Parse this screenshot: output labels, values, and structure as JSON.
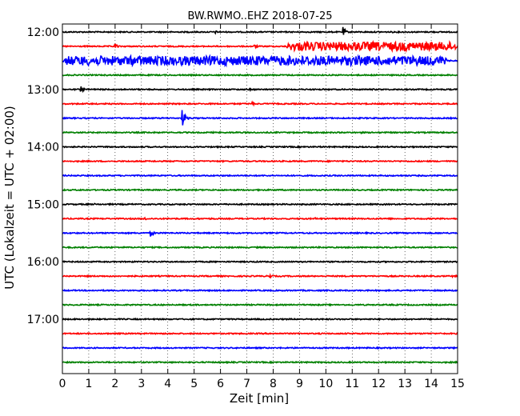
{
  "chart_data": {
    "type": "line",
    "title": "BW.RWMO..EHZ 2018-07-25",
    "xlabel": "Zeit  [min]",
    "ylabel": "UTC (Lokalzeit = UTC + 02:00)",
    "xlim": [
      0,
      15
    ],
    "xticks": [
      "0",
      "1",
      "2",
      "3",
      "4",
      "5",
      "6",
      "7",
      "8",
      "9",
      "10",
      "11",
      "12",
      "13",
      "14",
      "15"
    ],
    "ytick_labels": [
      "12:00",
      "13:00",
      "14:00",
      "15:00",
      "16:00",
      "17:00"
    ],
    "trace_interval_min": 15,
    "colors": [
      "#000000",
      "#ff0000",
      "#0000ff",
      "#008000"
    ],
    "grid": "vertical dotted",
    "series": [
      {
        "start": "12:00",
        "color": "#000000",
        "events": [
          {
            "t": 0.5,
            "amp": 0.15
          },
          {
            "t": 5.8,
            "amp": 0.25
          },
          {
            "t": 10.65,
            "amp": 0.7
          },
          {
            "t": 12.5,
            "amp": 0.15
          }
        ]
      },
      {
        "start": "12:15",
        "color": "#ff0000",
        "events": [
          {
            "t": 2.0,
            "amp": 0.45
          },
          {
            "t": 7.3,
            "amp": 0.3
          },
          {
            "t": 8.55,
            "amp": 0.45
          },
          {
            "t": 10.9,
            "amp": 0.45
          }
        ],
        "bursts": [
          {
            "from": 8.5,
            "to": 15.0,
            "amp": 0.6
          }
        ]
      },
      {
        "start": "12:30",
        "color": "#0000ff",
        "events": [],
        "bursts": [
          {
            "from": 0.0,
            "to": 14.6,
            "amp": 0.65
          }
        ]
      },
      {
        "start": "12:45",
        "color": "#008000",
        "events": [
          {
            "t": 4.0,
            "amp": 0.12
          },
          {
            "t": 9.3,
            "amp": 0.12
          }
        ]
      },
      {
        "start": "13:00",
        "color": "#000000",
        "events": [
          {
            "t": 0.7,
            "amp": 0.45
          },
          {
            "t": 7.1,
            "amp": 0.2
          }
        ]
      },
      {
        "start": "13:15",
        "color": "#ff0000",
        "events": [
          {
            "t": 7.2,
            "amp": 0.28
          }
        ]
      },
      {
        "start": "13:30",
        "color": "#0000ff",
        "events": [
          {
            "t": 4.55,
            "amp": 1.4
          }
        ]
      },
      {
        "start": "13:45",
        "color": "#008000",
        "events": [
          {
            "t": 11.3,
            "amp": 0.15
          }
        ]
      },
      {
        "start": "14:00",
        "color": "#000000",
        "events": [
          {
            "t": 1.5,
            "amp": 0.1
          }
        ]
      },
      {
        "start": "14:15",
        "color": "#ff0000",
        "events": [
          {
            "t": 6.0,
            "amp": 0.12
          },
          {
            "t": 13.5,
            "amp": 0.12
          }
        ]
      },
      {
        "start": "14:30",
        "color": "#0000ff",
        "events": [
          {
            "t": 9.0,
            "amp": 0.12
          }
        ]
      },
      {
        "start": "14:45",
        "color": "#008000",
        "events": [
          {
            "t": 4.5,
            "amp": 0.1
          }
        ]
      },
      {
        "start": "15:00",
        "color": "#000000",
        "events": [
          {
            "t": 1.2,
            "amp": 0.15
          }
        ]
      },
      {
        "start": "15:15",
        "color": "#ff0000",
        "events": [
          {
            "t": 3.15,
            "amp": 0.3
          },
          {
            "t": 5.6,
            "amp": 0.15
          },
          {
            "t": 9.6,
            "amp": 0.18
          },
          {
            "t": 12.5,
            "amp": 0.12
          }
        ]
      },
      {
        "start": "15:30",
        "color": "#0000ff",
        "events": [
          {
            "t": 3.35,
            "amp": 0.6
          },
          {
            "t": 6.3,
            "amp": 0.12
          }
        ]
      },
      {
        "start": "15:45",
        "color": "#008000",
        "events": [
          {
            "t": 1.2,
            "amp": 0.15
          },
          {
            "t": 12.4,
            "amp": 0.25
          }
        ]
      },
      {
        "start": "16:00",
        "color": "#000000",
        "events": []
      },
      {
        "start": "16:15",
        "color": "#ff0000",
        "events": [
          {
            "t": 7.85,
            "amp": 0.4
          },
          {
            "t": 14.8,
            "amp": 0.15
          }
        ]
      },
      {
        "start": "16:30",
        "color": "#0000ff",
        "events": []
      },
      {
        "start": "16:45",
        "color": "#008000",
        "events": []
      },
      {
        "start": "17:00",
        "color": "#000000",
        "events": [
          {
            "t": 1.0,
            "amp": 0.12
          }
        ]
      },
      {
        "start": "17:15",
        "color": "#ff0000",
        "events": []
      },
      {
        "start": "17:30",
        "color": "#0000ff",
        "events": []
      },
      {
        "start": "17:45",
        "color": "#008000",
        "events": []
      }
    ]
  }
}
